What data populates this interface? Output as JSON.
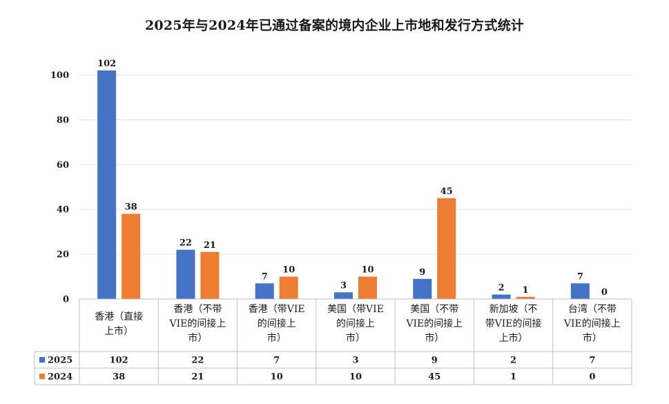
{
  "chart_data": {
    "type": "bar",
    "title": "2025年与2024年已通过备案的境内企业上市地和发行方式统计",
    "categories": [
      [
        "香港（直接",
        "上市）"
      ],
      [
        "香港（不带",
        "VIE的间接上",
        "市）"
      ],
      [
        "香港（带VIE",
        "的间接上",
        "市）"
      ],
      [
        "美国（带VIE",
        "的间接上",
        "市）"
      ],
      [
        "美国（不带",
        "VIE的间接上",
        "市）"
      ],
      [
        "新加坡（不",
        "带VIE的间接",
        "上市）"
      ],
      [
        "台湾（不带",
        "VIE的间接上",
        "市）"
      ]
    ],
    "series": [
      {
        "name": "2025",
        "color": "#4472C4",
        "values": [
          102,
          22,
          7,
          3,
          9,
          2,
          7
        ],
        "value_labels": [
          "102",
          "22",
          "7",
          "3",
          "9",
          "2",
          "7"
        ]
      },
      {
        "name": "2024",
        "color": "#ED7D31",
        "values": [
          38,
          21,
          10,
          10,
          45,
          1,
          0
        ],
        "value_labels": [
          "38",
          "21",
          "10",
          "10",
          "45",
          "1",
          "0"
        ]
      }
    ],
    "ylim": [
      0,
      110
    ],
    "yticks": [
      0,
      20,
      40,
      60,
      80,
      100
    ],
    "ytick_labels": [
      "0",
      "20",
      "40",
      "60",
      "80",
      "100"
    ],
    "grid": true,
    "legend": "data-table"
  }
}
